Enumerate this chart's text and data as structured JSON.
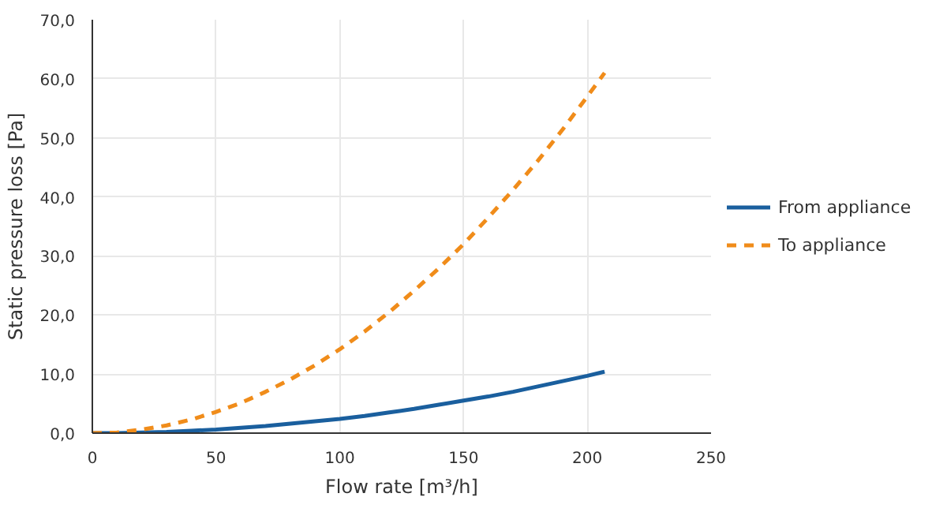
{
  "chart_data": {
    "type": "line",
    "xlabel": "Flow rate [m³/h]",
    "ylabel": "Static pressure loss [Pa]",
    "x": [
      0,
      10,
      20,
      30,
      40,
      50,
      60,
      70,
      80,
      90,
      100,
      110,
      120,
      130,
      140,
      150,
      160,
      170,
      180,
      190,
      200,
      207
    ],
    "series": [
      {
        "name": "From appliance",
        "color": "#1a5f9e",
        "line_style": "solid",
        "values": [
          0,
          0,
          0.1,
          0.2,
          0.4,
          0.6,
          0.9,
          1.2,
          1.6,
          2.0,
          2.4,
          2.9,
          3.5,
          4.1,
          4.8,
          5.5,
          6.2,
          7.0,
          7.9,
          8.8,
          9.7,
          10.4
        ]
      },
      {
        "name": "To appliance",
        "color": "#f08c1a",
        "line_style": "dashed",
        "values": [
          0,
          0.1,
          0.6,
          1.3,
          2.3,
          3.6,
          5.1,
          7.0,
          9.1,
          11.5,
          14.2,
          17.2,
          20.5,
          24.1,
          27.9,
          32.0,
          36.5,
          41.2,
          46.1,
          51.4,
          57.0,
          61.0
        ]
      }
    ],
    "xlim": [
      0,
      250
    ],
    "xticks": [
      0,
      50,
      100,
      150,
      200,
      250
    ],
    "ylim": [
      0,
      70
    ],
    "yticks": [
      {
        "value": 0,
        "label": "0,0"
      },
      {
        "value": 10,
        "label": "10,0"
      },
      {
        "value": 20,
        "label": "20,0"
      },
      {
        "value": 30,
        "label": "30,0"
      },
      {
        "value": 40,
        "label": "40,0"
      },
      {
        "value": 50,
        "label": "50,0"
      },
      {
        "value": 60,
        "label": "60,0"
      },
      {
        "value": 70,
        "label": "70,0"
      }
    ],
    "grid": true,
    "legend": "right"
  }
}
